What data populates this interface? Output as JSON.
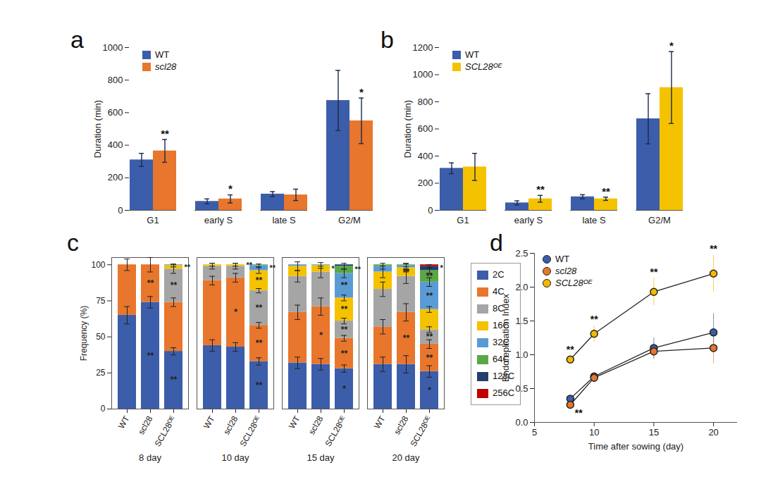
{
  "chart_data": [
    {
      "type": "bar",
      "title": "a",
      "categories": [
        "G1",
        "early S",
        "late S",
        "G2/M"
      ],
      "ylabel": "Duration (min)",
      "ylim": [
        0,
        1000
      ],
      "yticks": [
        0,
        200,
        400,
        600,
        800,
        1000
      ],
      "legend": "top-left",
      "series": [
        {
          "name": "WT",
          "color": "#3c5da9",
          "values": [
            310,
            55,
            100,
            675
          ],
          "errors": [
            40,
            15,
            15,
            185
          ]
        },
        {
          "name": "scl28",
          "color": "#e8762c",
          "values": [
            365,
            70,
            95,
            550
          ],
          "errors": [
            70,
            25,
            35,
            140
          ],
          "significance": [
            "**",
            "*",
            null,
            "*"
          ]
        }
      ]
    },
    {
      "type": "bar",
      "title": "b",
      "categories": [
        "G1",
        "early S",
        "late S",
        "G2/M"
      ],
      "ylabel": "Duration (min)",
      "ylim": [
        0,
        1200
      ],
      "yticks": [
        0,
        200,
        400,
        600,
        800,
        1000,
        1200
      ],
      "legend": "top-left",
      "series": [
        {
          "name": "WT",
          "color": "#3c5da9",
          "values": [
            310,
            55,
            100,
            675
          ],
          "errors": [
            40,
            15,
            15,
            185
          ]
        },
        {
          "name": "SCL28ᴼᴱ",
          "color": "#f5c200",
          "values": [
            320,
            85,
            85,
            905
          ],
          "errors": [
            100,
            25,
            12,
            265
          ],
          "significance": [
            null,
            "**",
            "**",
            "*"
          ]
        }
      ]
    },
    {
      "type": "bar",
      "title": "c",
      "stacked": true,
      "categories": [
        "WT",
        "scl28",
        "SCL28ᴼᴱ"
      ],
      "groups": [
        "8 day",
        "10 day",
        "15 day",
        "20 day"
      ],
      "ylabel": "Frequency (%)",
      "ylim": [
        0,
        105
      ],
      "yticks": [
        0,
        25,
        50,
        75,
        100
      ],
      "legend": "right",
      "series": [
        {
          "name": "2C",
          "color": "#3c5da9",
          "values": [
            [
              65,
              74,
              40
            ],
            [
              44,
              43,
              33
            ],
            [
              32,
              31,
              28
            ],
            [
              31,
              31,
              26
            ]
          ],
          "errors": [
            [
              6,
              4,
              2.5
            ],
            [
              4,
              3,
              2.5
            ],
            [
              4,
              4,
              2.5
            ],
            [
              5,
              6,
              4
            ]
          ],
          "significance": [
            [
              null,
              "**",
              "**"
            ],
            [
              null,
              null,
              "**"
            ],
            [
              null,
              null,
              "*"
            ],
            [
              null,
              null,
              "*"
            ]
          ]
        },
        {
          "name": "4C",
          "color": "#e8762c",
          "values": [
            [
              35,
              26,
              34
            ],
            [
              45,
              48,
              25
            ],
            [
              35,
              40,
              21
            ],
            [
              26,
              36,
              19
            ]
          ],
          "errors": [
            [
              4,
              5,
              3
            ],
            [
              3,
              3,
              2
            ],
            [
              5,
              6,
              2
            ],
            [
              5,
              6,
              3
            ]
          ],
          "significance": [
            [
              null,
              "**",
              null
            ],
            [
              null,
              "*",
              "**"
            ],
            [
              null,
              "*",
              "**"
            ],
            [
              null,
              "**",
              "**"
            ]
          ]
        },
        {
          "name": "8C",
          "color": "#a5a5a5",
          "values": [
            [
              0,
              0,
              23
            ],
            [
              10,
              8,
              24
            ],
            [
              25,
              24,
              12
            ],
            [
              26,
              25,
              10
            ]
          ],
          "errors": [
            [
              null,
              null,
              3
            ],
            [
              2,
              2,
              1.5
            ],
            [
              4,
              4,
              2
            ],
            [
              5,
              5,
              2
            ]
          ],
          "significance": [
            [
              null,
              null,
              "**"
            ],
            [
              null,
              null,
              "**"
            ],
            [
              null,
              null,
              "**"
            ],
            [
              null,
              null,
              "**"
            ]
          ]
        },
        {
          "name": "16C",
          "color": "#f5c200",
          "values": [
            [
              0,
              0,
              2.5
            ],
            [
              1,
              1,
              14
            ],
            [
              7,
              4.5,
              16
            ],
            [
              12,
              6,
              14
            ]
          ],
          "errors": [
            [
              null,
              null,
              1
            ],
            [
              1,
              1,
              2
            ],
            [
              3,
              2,
              2
            ],
            [
              4,
              3,
              2
            ]
          ],
          "significance": [
            [
              null,
              null,
              "**"
            ],
            [
              null,
              "**",
              "**"
            ],
            [
              null,
              "*",
              "**"
            ],
            [
              null,
              "**",
              null
            ]
          ]
        },
        {
          "name": "32C",
          "color": "#5b9bd5",
          "values": [
            [
              0,
              0,
              0.5
            ],
            [
              0,
              0,
              3.5
            ],
            [
              1,
              0.5,
              17
            ],
            [
              4,
              1.5,
              19
            ]
          ],
          "errors": [
            [
              null,
              null,
              null
            ],
            [
              null,
              null,
              1
            ],
            [
              null,
              null,
              3
            ],
            [
              2,
              1,
              3
            ]
          ],
          "significance": [
            [
              null,
              null,
              null
            ],
            [
              null,
              null,
              "**"
            ],
            [
              null,
              null,
              "**"
            ],
            [
              null,
              null,
              "**"
            ]
          ]
        },
        {
          "name": "64C",
          "color": "#5aa845",
          "values": [
            [
              0,
              0,
              0
            ],
            [
              0,
              0,
              0.5
            ],
            [
              0,
              0,
              5
            ],
            [
              1,
              0.5,
              8
            ]
          ],
          "errors": [
            [
              null,
              null,
              null
            ],
            [
              null,
              null,
              null
            ],
            [
              null,
              null,
              2
            ],
            [
              null,
              null,
              2
            ]
          ],
          "significance": [
            [
              null,
              null,
              null
            ],
            [
              null,
              null,
              null
            ],
            [
              null,
              null,
              "**"
            ],
            [
              null,
              null,
              "**"
            ]
          ]
        },
        {
          "name": "128C",
          "color": "#253d6b",
          "values": [
            [
              0,
              0,
              0
            ],
            [
              0,
              0,
              0
            ],
            [
              0,
              0,
              1
            ],
            [
              0,
              0,
              3
            ]
          ],
          "errors": [
            [
              null,
              null,
              null
            ],
            [
              null,
              null,
              null
            ],
            [
              null,
              null,
              null
            ],
            [
              null,
              null,
              1
            ]
          ],
          "significance": [
            [
              null,
              null,
              null
            ],
            [
              null,
              null,
              null
            ],
            [
              null,
              null,
              null
            ],
            [
              null,
              null,
              "*"
            ]
          ]
        },
        {
          "name": "256C",
          "color": "#c00000",
          "values": [
            [
              0,
              0,
              0
            ],
            [
              0,
              0,
              0
            ],
            [
              0,
              0,
              0
            ],
            [
              0,
              0,
              1
            ]
          ],
          "errors": [
            [
              null,
              null,
              null
            ],
            [
              null,
              null,
              null
            ],
            [
              null,
              null,
              null
            ],
            [
              null,
              null,
              null
            ]
          ],
          "significance": [
            [
              null,
              null,
              null
            ],
            [
              null,
              null,
              null
            ],
            [
              null,
              null,
              null
            ],
            [
              null,
              null,
              null
            ]
          ]
        }
      ]
    },
    {
      "type": "line",
      "title": "d",
      "x": [
        8,
        10,
        15,
        20
      ],
      "xlabel": "Time after sowing (day)",
      "ylabel": "Endoreplication Index",
      "xlim": [
        5,
        22
      ],
      "xticks": [
        5,
        10,
        15,
        20
      ],
      "ylim": [
        0,
        2.5
      ],
      "yticks": [
        {
          "value": 0,
          "label": "0.0"
        },
        0.5,
        {
          "value": 1,
          "label": "1.0"
        },
        1.5,
        {
          "value": 2,
          "label": "2.0"
        },
        2.5
      ],
      "legend": "top-left",
      "marker": "circle",
      "series": [
        {
          "name": "WT",
          "color": "#3c5da9",
          "values": [
            0.35,
            0.68,
            1.1,
            1.33
          ],
          "errors": [
            0.05,
            0.05,
            0.15,
            0.28
          ]
        },
        {
          "name": "scl28",
          "color": "#e8762c",
          "values": [
            0.26,
            0.66,
            1.05,
            1.1
          ],
          "errors": [
            0.03,
            0.05,
            0.12,
            0.23
          ],
          "significance": [
            "**",
            null,
            null,
            null
          ]
        },
        {
          "name": "SCL28ᴼᴱ",
          "color": "#f5b800",
          "values": [
            0.93,
            1.31,
            1.93,
            2.2
          ],
          "errors": [
            0.05,
            0.12,
            0.2,
            0.27
          ],
          "significance": [
            "**",
            "**",
            "**",
            "**"
          ]
        }
      ]
    }
  ]
}
